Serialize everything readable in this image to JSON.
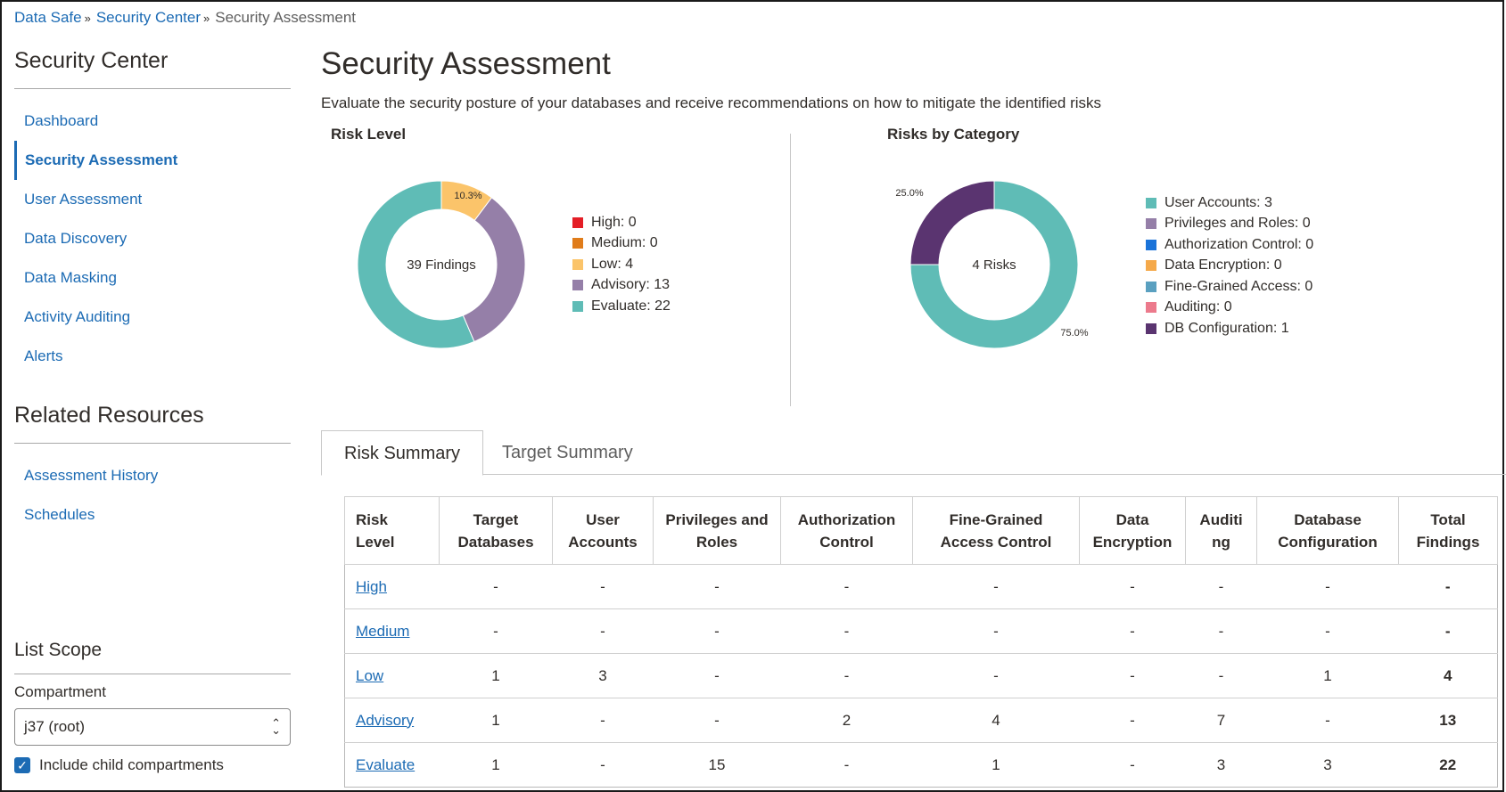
{
  "breadcrumb": {
    "items": [
      "Data Safe",
      "Security Center"
    ],
    "current": "Security Assessment",
    "separator": "»"
  },
  "sidebar": {
    "heading": "Security Center",
    "items": [
      "Dashboard",
      "Security Assessment",
      "User Assessment",
      "Data Discovery",
      "Data Masking",
      "Activity Auditing",
      "Alerts"
    ],
    "active": "Security Assessment",
    "related_heading": "Related Resources",
    "related_items": [
      "Assessment History",
      "Schedules"
    ],
    "scope_heading": "List Scope",
    "compartment_label": "Compartment",
    "compartment_value": "j37 (root)",
    "include_child_label": "Include child compartments",
    "include_child_checked": true
  },
  "main": {
    "title": "Security Assessment",
    "description": "Evaluate the security posture of your databases and receive recommendations on how to mitigate the identified risks"
  },
  "risk_level_chart": {
    "title": "Risk Level",
    "center_label": "39 Findings",
    "slice_label": "10.3%",
    "slices": [
      {
        "name": "High",
        "value": 0,
        "label": "High: 0",
        "color": "#e41e26"
      },
      {
        "name": "Medium",
        "value": 0,
        "label": "Medium: 0",
        "color": "#e07c1a"
      },
      {
        "name": "Low",
        "value": 4,
        "label": "Low: 4",
        "color": "#fbc46a"
      },
      {
        "name": "Advisory",
        "value": 13,
        "label": "Advisory: 13",
        "color": "#957fa8"
      },
      {
        "name": "Evaluate",
        "value": 22,
        "label": "Evaluate: 22",
        "color": "#5fbcb6"
      }
    ]
  },
  "category_chart": {
    "title": "Risks by Category",
    "center_label": "4 Risks",
    "slice_labels": [
      "75.0%",
      "25.0%"
    ],
    "slices": [
      {
        "name": "User Accounts",
        "value": 3,
        "label": "User Accounts: 3",
        "color": "#5fbcb6"
      },
      {
        "name": "Privileges and Roles",
        "value": 0,
        "label": "Privileges and Roles: 0",
        "color": "#957fa8"
      },
      {
        "name": "Authorization Control",
        "value": 0,
        "label": "Authorization Control: 0",
        "color": "#1a73d9"
      },
      {
        "name": "Data Encryption",
        "value": 0,
        "label": "Data Encryption: 0",
        "color": "#f5a94a"
      },
      {
        "name": "Fine-Grained Access",
        "value": 0,
        "label": "Fine-Grained Access: 0",
        "color": "#5aa0c0"
      },
      {
        "name": "Auditing",
        "value": 0,
        "label": "Auditing: 0",
        "color": "#ec7a8c"
      },
      {
        "name": "DB Configuration",
        "value": 1,
        "label": "DB Configuration: 1",
        "color": "#5a3470"
      }
    ]
  },
  "tabs": [
    "Risk Summary",
    "Target Summary"
  ],
  "table": {
    "headers": [
      [
        "Risk",
        "Level"
      ],
      [
        "Target",
        "Databases"
      ],
      [
        "User",
        "Accounts"
      ],
      [
        "Privileges and",
        "Roles"
      ],
      [
        "Authorization",
        "Control"
      ],
      [
        "Fine-Grained",
        "Access Control"
      ],
      [
        "Data",
        "Encryption"
      ],
      [
        "Auditi",
        "ng"
      ],
      [
        "Database",
        "Configuration"
      ],
      [
        "Total",
        "Findings"
      ]
    ],
    "rows": [
      [
        "High",
        "-",
        "-",
        "-",
        "-",
        "-",
        "-",
        "-",
        "-",
        "-"
      ],
      [
        "Medium",
        "-",
        "-",
        "-",
        "-",
        "-",
        "-",
        "-",
        "-",
        "-"
      ],
      [
        "Low",
        "1",
        "3",
        "-",
        "-",
        "-",
        "-",
        "-",
        "1",
        "4"
      ],
      [
        "Advisory",
        "1",
        "-",
        "-",
        "2",
        "4",
        "-",
        "7",
        "-",
        "13"
      ],
      [
        "Evaluate",
        "1",
        "-",
        "15",
        "-",
        "1",
        "-",
        "3",
        "3",
        "22"
      ]
    ]
  }
}
